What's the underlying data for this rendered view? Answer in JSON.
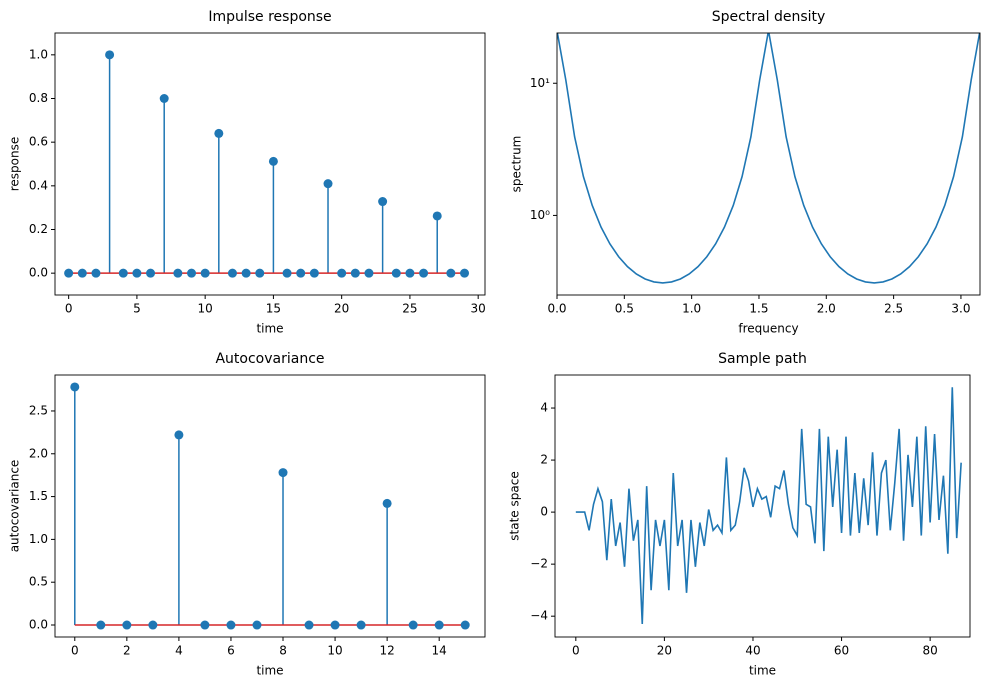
{
  "chart_data": [
    {
      "type": "stem",
      "title": "Impulse response",
      "xlabel": "time",
      "ylabel": "response",
      "x": [
        0,
        1,
        2,
        3,
        4,
        5,
        6,
        7,
        8,
        9,
        10,
        11,
        12,
        13,
        14,
        15,
        16,
        17,
        18,
        19,
        20,
        21,
        22,
        23,
        24,
        25,
        26,
        27,
        28,
        29
      ],
      "values": [
        0,
        0,
        0,
        1.0,
        0,
        0,
        0,
        0.8,
        0,
        0,
        0,
        0.64,
        0,
        0,
        0,
        0.512,
        0,
        0,
        0,
        0.41,
        0,
        0,
        0,
        0.328,
        0,
        0,
        0,
        0.262,
        0,
        0
      ],
      "color": "#1f77b4",
      "baseline_color": "#d62728",
      "xlim": [
        -1,
        30.5
      ],
      "ylim": [
        -0.1,
        1.1
      ],
      "xticks": [
        0,
        5,
        10,
        15,
        20,
        25,
        30
      ],
      "yticks": [
        {
          "value": 0,
          "label": "0.0"
        },
        {
          "value": 0.2,
          "label": "0.2"
        },
        {
          "value": 0.4,
          "label": "0.4"
        },
        {
          "value": 0.6,
          "label": "0.6"
        },
        {
          "value": 0.8,
          "label": "0.8"
        },
        {
          "value": 1,
          "label": "1.0"
        }
      ]
    },
    {
      "type": "line",
      "title": "Spectral density",
      "xlabel": "frequency",
      "ylabel": "spectrum",
      "yscale": "log",
      "x": [
        0,
        0.0654,
        0.1309,
        0.1963,
        0.2618,
        0.3272,
        0.3927,
        0.4581,
        0.5236,
        0.589,
        0.6545,
        0.7199,
        0.7854,
        0.8508,
        0.9163,
        0.9817,
        1.0472,
        1.1126,
        1.1781,
        1.2435,
        1.309,
        1.3744,
        1.4399,
        1.5053,
        1.5708,
        1.6362,
        1.7017,
        1.7671,
        1.8326,
        1.898,
        1.9635,
        2.0289,
        2.0944,
        2.1598,
        2.2253,
        2.2907,
        2.3562,
        2.4216,
        2.4871,
        2.5525,
        2.618,
        2.6834,
        2.7489,
        2.8143,
        2.8798,
        2.9452,
        3.0107,
        3.0761,
        3.1416
      ],
      "values": [
        25,
        10.58,
        3.931,
        1.966,
        1.19,
        0.8157,
        0.6098,
        0.4868,
        0.4098,
        0.3608,
        0.3305,
        0.3139,
        0.3086,
        0.3139,
        0.3305,
        0.3608,
        0.4098,
        0.4868,
        0.6098,
        0.8157,
        1.19,
        1.966,
        3.931,
        10.58,
        25,
        10.58,
        3.931,
        1.966,
        1.19,
        0.8157,
        0.6098,
        0.4868,
        0.4098,
        0.3608,
        0.3305,
        0.3139,
        0.3086,
        0.3139,
        0.3305,
        0.3608,
        0.4098,
        0.4868,
        0.6098,
        0.8157,
        1.19,
        1.966,
        3.931,
        10.58,
        25
      ],
      "color": "#1f77b4",
      "xlim": [
        0,
        3.1416
      ],
      "ylim": [
        0.25,
        24
      ],
      "xticks": [
        {
          "value": 0,
          "label": "0.0"
        },
        {
          "value": 0.5,
          "label": "0.5"
        },
        {
          "value": 1,
          "label": "1.0"
        },
        {
          "value": 1.5,
          "label": "1.5"
        },
        {
          "value": 2,
          "label": "2.0"
        },
        {
          "value": 2.5,
          "label": "2.5"
        },
        {
          "value": 3,
          "label": "3.0"
        }
      ],
      "yticks": [
        {
          "value": 1,
          "label": "10⁰"
        },
        {
          "value": 10,
          "label": "10¹"
        }
      ]
    },
    {
      "type": "stem",
      "title": "Autocovariance",
      "xlabel": "time",
      "ylabel": "autocovariance",
      "x": [
        0,
        1,
        2,
        3,
        4,
        5,
        6,
        7,
        8,
        9,
        10,
        11,
        12,
        13,
        14,
        15
      ],
      "values": [
        2.78,
        0,
        0,
        0,
        2.22,
        0,
        0,
        0,
        1.78,
        0,
        0,
        0,
        1.42,
        0,
        0,
        0
      ],
      "color": "#1f77b4",
      "baseline_color": "#d62728",
      "xlim": [
        -0.76,
        15.76
      ],
      "ylim": [
        -0.14,
        2.92
      ],
      "xticks": [
        0,
        2,
        4,
        6,
        8,
        10,
        12,
        14
      ],
      "yticks": [
        {
          "value": 0,
          "label": "0.0"
        },
        {
          "value": 0.5,
          "label": "0.5"
        },
        {
          "value": 1,
          "label": "1.0"
        },
        {
          "value": 1.5,
          "label": "1.5"
        },
        {
          "value": 2,
          "label": "2.0"
        },
        {
          "value": 2.5,
          "label": "2.5"
        }
      ]
    },
    {
      "type": "line",
      "title": "Sample path",
      "xlabel": "time",
      "ylabel": "state space",
      "x": [
        0,
        1,
        2,
        3,
        4,
        5,
        6,
        7,
        8,
        9,
        10,
        11,
        12,
        13,
        14,
        15,
        16,
        17,
        18,
        19,
        20,
        21,
        22,
        23,
        24,
        25,
        26,
        27,
        28,
        29,
        30,
        31,
        32,
        33,
        34,
        35,
        36,
        37,
        38,
        39,
        40,
        41,
        42,
        43,
        44,
        45,
        46,
        47,
        48,
        49,
        50,
        51,
        52,
        53,
        54,
        55,
        56,
        57,
        58,
        59,
        60,
        61,
        62,
        63,
        64,
        65,
        66,
        67,
        68,
        69,
        70,
        71,
        72,
        73,
        74,
        75,
        76,
        77,
        78,
        79,
        80,
        81,
        82,
        83,
        84,
        85,
        86,
        87
      ],
      "values": [
        0,
        0,
        0,
        -0.7,
        0.3,
        0.9,
        0.4,
        -1.85,
        0.5,
        -1.3,
        -0.4,
        -2.1,
        0.9,
        -1.1,
        -0.3,
        -4.3,
        1.0,
        -3.0,
        -0.3,
        -1.3,
        -0.3,
        -3.0,
        1.5,
        -1.3,
        -0.3,
        -3.1,
        -0.3,
        -2.1,
        -0.4,
        -1.3,
        0.1,
        -0.7,
        -0.5,
        -0.8,
        2.1,
        -0.7,
        -0.5,
        0.4,
        1.7,
        1.2,
        0.2,
        0.9,
        0.5,
        0.6,
        -0.2,
        1.0,
        0.9,
        1.6,
        0.3,
        -0.6,
        -0.9,
        3.2,
        0.3,
        0.2,
        -1.2,
        3.2,
        -1.5,
        2.9,
        0.2,
        2.4,
        -0.8,
        2.9,
        -0.9,
        1.5,
        -0.8,
        1.3,
        -0.5,
        2.3,
        -0.9,
        1.5,
        2.0,
        -0.7,
        1.1,
        3.2,
        -1.1,
        2.2,
        0.2,
        2.9,
        -0.9,
        3.3,
        -0.4,
        3.0,
        -0.3,
        1.4,
        -1.6,
        4.8,
        -1.0,
        1.9
      ],
      "color": "#1f77b4",
      "xlim": [
        -4.7,
        89
      ],
      "ylim": [
        -4.8,
        5.27
      ],
      "xticks": [
        0,
        20,
        40,
        60,
        80
      ],
      "yticks": [
        {
          "value": -4,
          "label": "−4"
        },
        {
          "value": -2,
          "label": "−2"
        },
        0,
        2,
        4
      ]
    }
  ]
}
